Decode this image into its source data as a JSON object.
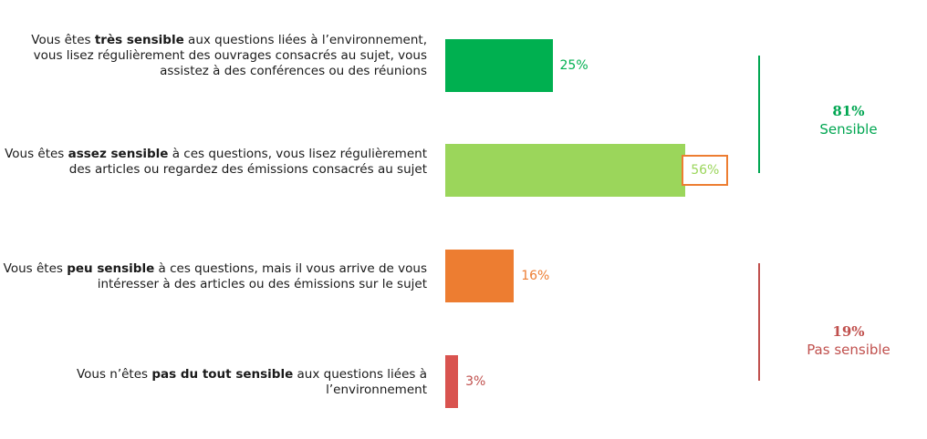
{
  "chart_data": {
    "type": "bar",
    "orientation": "horizontal",
    "categories": [
      {
        "prefix": "Vous êtes ",
        "bold": "très sensible",
        "suffix": " aux questions liées à l’environnement, vous lisez régulièrement des ouvrages consacrés au sujet, vous assistez à des conférences ou des réunions"
      },
      {
        "prefix": "Vous êtes ",
        "bold": "assez sensible",
        "suffix": " à ces questions, vous lisez régulièrement des articles ou regardez des émissions consacrés au sujet"
      },
      {
        "prefix": "Vous êtes ",
        "bold": "peu sensible",
        "suffix": " à ces questions, mais il vous arrive de vous intéresser à des articles ou des émissions sur le sujet"
      },
      {
        "prefix": "Vous n’êtes ",
        "bold": "pas du tout sensible",
        "suffix": " aux questions liées à l’environnement"
      }
    ],
    "values": [
      25,
      56,
      16,
      3
    ],
    "value_labels": [
      "25%",
      "56%",
      "16%",
      "3%"
    ],
    "colors": [
      "#00b050",
      "#9bd65b",
      "#ed7d31",
      "#d9534f"
    ],
    "value_label_colors": [
      "#00b050",
      "#9bd65b",
      "#ed7d31",
      "#c0504d"
    ],
    "highlighted_index": 1,
    "groups": [
      {
        "pct": "81%",
        "label": "Sensible",
        "color": "#00a651",
        "members": [
          0,
          1
        ]
      },
      {
        "pct": "19%",
        "label": "Pas sensible",
        "color": "#c0504d",
        "members": [
          2,
          3
        ]
      }
    ],
    "xlim": [
      0,
      100
    ],
    "grid": false
  }
}
